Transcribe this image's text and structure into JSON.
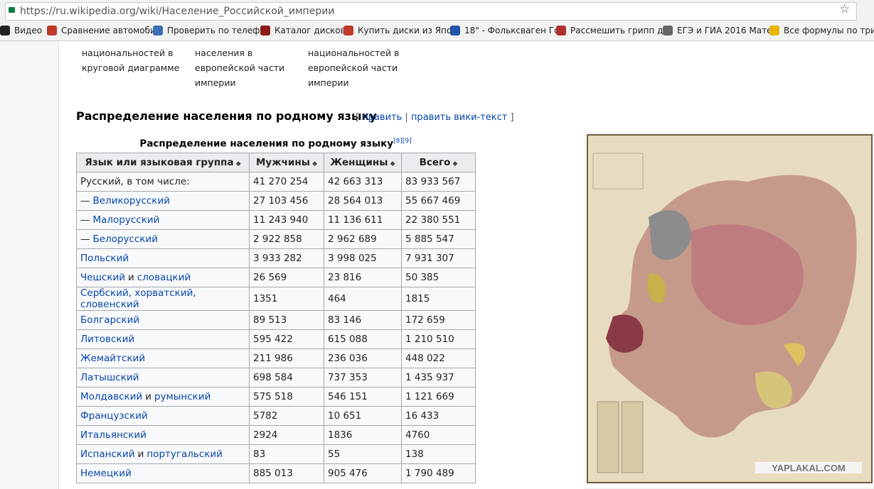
{
  "browser": {
    "url": "https://ru.wikipedia.org/wiki/Население_Российской_империи",
    "bookmarks": [
      "Видео",
      "Сравнение автомоби",
      "Проверить по телеф",
      "Каталог дисков",
      "Купить диски из Япо",
      "18\" - Фольксваген Го",
      "Рассмешить грипп до",
      "ЕГЭ и ГИА 2016 Мате",
      "Все формулы по три"
    ]
  },
  "gallery": [
    [
      "национальностей в",
      "круговой диаграмме"
    ],
    [
      "населения в",
      "европейской части",
      "империи"
    ],
    [
      "национальностей в",
      "европейской части",
      "империи"
    ]
  ],
  "section": {
    "title": "Распределение населения по родному языку",
    "edit": "править",
    "edit_source": "править вики-текст"
  },
  "table": {
    "caption": "Распределение населения по родному языку",
    "refs": [
      "[8]",
      "[9]"
    ],
    "headers": [
      "Язык или языковая группа",
      "Мужчины",
      "Женщины",
      "Всего"
    ],
    "rows": [
      {
        "language": [
          {
            "text": "Русский, в том числе:",
            "link": false
          }
        ],
        "men": "41 270 254",
        "women": "42 663 313",
        "total": "83 933 567"
      },
      {
        "language": [
          {
            "text": "—",
            "link": false
          },
          {
            "text": "Великорусский",
            "link": true
          }
        ],
        "men": "27 103 456",
        "women": "28 564 013",
        "total": "55 667 469"
      },
      {
        "language": [
          {
            "text": "—",
            "link": false
          },
          {
            "text": "Малорусский",
            "link": true
          }
        ],
        "men": "11 243 940",
        "women": "11 136 611",
        "total": "22 380 551"
      },
      {
        "language": [
          {
            "text": "—",
            "link": false
          },
          {
            "text": "Белорусский",
            "link": true
          }
        ],
        "men": "2 922 858",
        "women": "2 962 689",
        "total": "5 885 547"
      },
      {
        "language": [
          {
            "text": "Польский",
            "link": true
          }
        ],
        "men": "3 933 282",
        "women": "3 998 025",
        "total": "7 931 307"
      },
      {
        "language": [
          {
            "text": "Чешский",
            "link": true
          },
          {
            "text": "и",
            "link": false
          },
          {
            "text": "словацкий",
            "link": true
          }
        ],
        "men": "26 569",
        "women": "23 816",
        "total": "50 385"
      },
      {
        "language": [
          {
            "text": "Сербский, хорватский, словенский",
            "link": true
          }
        ],
        "men": "1351",
        "women": "464",
        "total": "1815"
      },
      {
        "language": [
          {
            "text": "Болгарский",
            "link": true
          }
        ],
        "men": "89 513",
        "women": "83 146",
        "total": "172 659"
      },
      {
        "language": [
          {
            "text": "Литовский",
            "link": true
          }
        ],
        "men": "595 422",
        "women": "615 088",
        "total": "1 210 510"
      },
      {
        "language": [
          {
            "text": "Жемайтский",
            "link": true
          }
        ],
        "men": "211 986",
        "women": "236 036",
        "total": "448 022"
      },
      {
        "language": [
          {
            "text": "Латышский",
            "link": true
          }
        ],
        "men": "698 584",
        "women": "737 353",
        "total": "1 435 937"
      },
      {
        "language": [
          {
            "text": "Молдавский",
            "link": true
          },
          {
            "text": "и",
            "link": false
          },
          {
            "text": "румынский",
            "link": true
          }
        ],
        "men": "575 518",
        "women": "546 151",
        "total": "1 121 669"
      },
      {
        "language": [
          {
            "text": "Французский",
            "link": true
          }
        ],
        "men": "5782",
        "women": "10 651",
        "total": "16 433"
      },
      {
        "language": [
          {
            "text": "Итальянский",
            "link": true
          }
        ],
        "men": "2924",
        "women": "1836",
        "total": "4760"
      },
      {
        "language": [
          {
            "text": "Испанский",
            "link": true
          },
          {
            "text": "и",
            "link": false
          },
          {
            "text": "португальский",
            "link": true
          }
        ],
        "men": "83",
        "women": "55",
        "total": "138"
      },
      {
        "language": [
          {
            "text": "Немецкий",
            "link": true
          }
        ],
        "men": "885 013",
        "women": "905 476",
        "total": "1 790 489"
      }
    ]
  },
  "map": {
    "watermark": "YAPLAKAL.COM"
  }
}
